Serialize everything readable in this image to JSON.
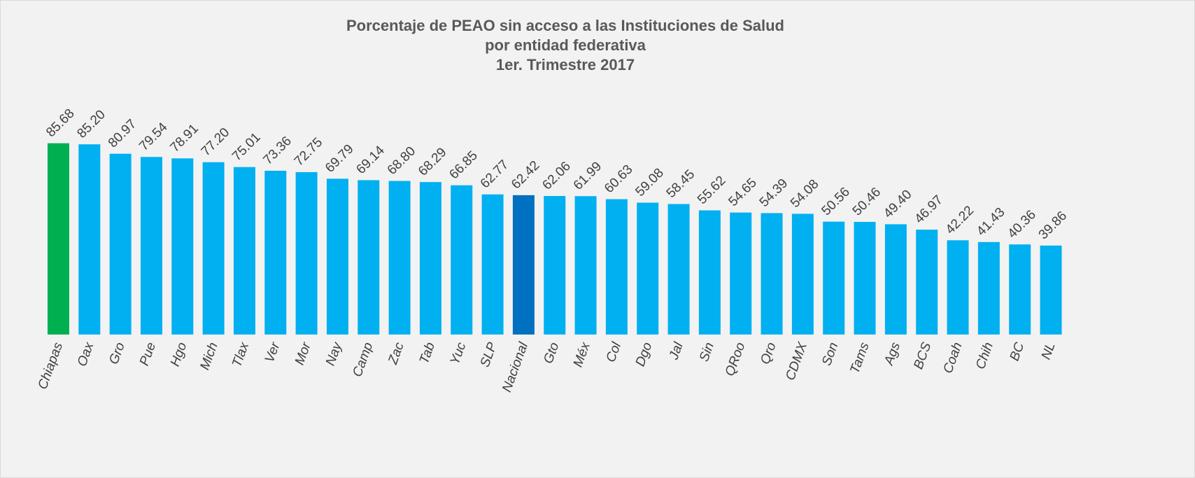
{
  "chart_data": {
    "type": "bar",
    "title": [
      "Porcentaje de PEAO sin acceso a las Instituciones de Salud",
      "por entidad federativa",
      "1er. Trimestre 2017"
    ],
    "categories": [
      "Chiapas",
      "Oax",
      "Gro",
      "Pue",
      "Hgo",
      "Mich",
      "Tlax",
      "Ver",
      "Mor",
      "Nay",
      "Camp",
      "Zac",
      "Tab",
      "Yuc",
      "SLP",
      "Nacional",
      "Gto",
      "Méx",
      "Col",
      "Dgo",
      "Jal",
      "Sin",
      "QRoo",
      "Qro",
      "CDMX",
      "Son",
      "Tams",
      "Ags",
      "BCS",
      "Coah",
      "Chih",
      "BC",
      "NL"
    ],
    "values": [
      85.68,
      85.2,
      80.97,
      79.54,
      78.91,
      77.2,
      75.01,
      73.36,
      72.75,
      69.79,
      69.14,
      68.8,
      68.29,
      66.85,
      62.77,
      62.42,
      62.06,
      61.99,
      60.63,
      59.08,
      58.45,
      55.62,
      54.65,
      54.39,
      54.08,
      50.56,
      50.46,
      49.4,
      46.97,
      42.22,
      41.43,
      40.36,
      39.86
    ],
    "value_labels": [
      "85.68",
      "85.20",
      "80.97",
      "79.54",
      "78.91",
      "77.20",
      "75.01",
      "73.36",
      "72.75",
      "69.79",
      "69.14",
      "68.80",
      "68.29",
      "66.85",
      "62.77",
      "62.42",
      "62.06",
      "61.99",
      "60.63",
      "59.08",
      "58.45",
      "55.62",
      "54.65",
      "54.39",
      "54.08",
      "50.56",
      "50.46",
      "49.40",
      "46.97",
      "42.22",
      "41.43",
      "40.36",
      "39.86"
    ],
    "colors": [
      "#00b050",
      "#00b0f0",
      "#00b0f0",
      "#00b0f0",
      "#00b0f0",
      "#00b0f0",
      "#00b0f0",
      "#00b0f0",
      "#00b0f0",
      "#00b0f0",
      "#00b0f0",
      "#00b0f0",
      "#00b0f0",
      "#00b0f0",
      "#00b0f0",
      "#0070c0",
      "#00b0f0",
      "#00b0f0",
      "#00b0f0",
      "#00b0f0",
      "#00b0f0",
      "#00b0f0",
      "#00b0f0",
      "#00b0f0",
      "#00b0f0",
      "#00b0f0",
      "#00b0f0",
      "#00b0f0",
      "#00b0f0",
      "#00b0f0",
      "#00b0f0",
      "#00b0f0",
      "#00b0f0"
    ],
    "ylim": [
      0,
      100
    ]
  }
}
